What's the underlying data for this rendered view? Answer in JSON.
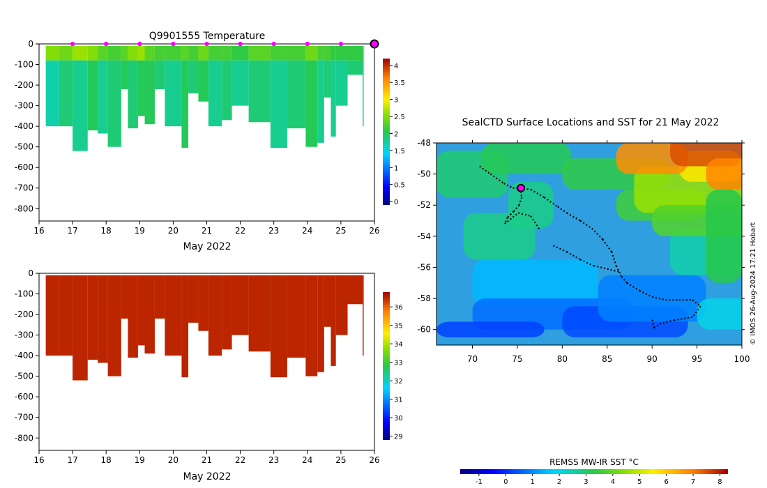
{
  "chart_data": [
    {
      "type": "heatmap",
      "title": "Q9901555  Temperature",
      "xlabel": "May 2022",
      "x_ticks": [
        "16",
        "17",
        "18",
        "19",
        "20",
        "21",
        "22",
        "23",
        "24",
        "25",
        "26"
      ],
      "xlim": [
        16,
        26
      ],
      "y_ticks": [
        "0",
        "-100",
        "-200",
        "-300",
        "-400",
        "-500",
        "-600",
        "-700",
        "-800"
      ],
      "ylim": [
        -860,
        0
      ],
      "colorbar": {
        "ticks": [
          "0",
          "0.5",
          "1",
          "1.5",
          "2",
          "2.5",
          "3",
          "3.5",
          "4"
        ],
        "range": [
          -0.1,
          4.2
        ]
      },
      "profiles": [
        {
          "start": 16.2,
          "end": 16.6,
          "depth": 400,
          "temp": 1.7,
          "upper": 2.5
        },
        {
          "start": 16.6,
          "end": 17.0,
          "depth": 400,
          "temp": 1.9,
          "upper": 2.4
        },
        {
          "start": 17.0,
          "end": 17.45,
          "depth": 520,
          "temp": 1.8,
          "upper": 2.6
        },
        {
          "start": 17.45,
          "end": 17.75,
          "depth": 420,
          "temp": 2.0,
          "upper": 2.5
        },
        {
          "start": 17.75,
          "end": 18.05,
          "depth": 435,
          "temp": 1.8,
          "upper": 2.3
        },
        {
          "start": 18.05,
          "end": 18.45,
          "depth": 500,
          "temp": 1.9,
          "upper": 2.2
        },
        {
          "start": 18.45,
          "end": 18.65,
          "depth": 220,
          "temp": 2.0,
          "upper": 2.3
        },
        {
          "start": 18.65,
          "end": 18.95,
          "depth": 410,
          "temp": 1.9,
          "upper": 2.5
        },
        {
          "start": 18.95,
          "end": 19.15,
          "depth": 350,
          "temp": 2.0,
          "upper": 2.6
        },
        {
          "start": 19.15,
          "end": 19.45,
          "depth": 390,
          "temp": 2.0,
          "upper": 2.3
        },
        {
          "start": 19.45,
          "end": 19.75,
          "depth": 220,
          "temp": 1.9,
          "upper": 2.2
        },
        {
          "start": 19.75,
          "end": 20.25,
          "depth": 400,
          "temp": 1.8,
          "upper": 2.2
        },
        {
          "start": 20.25,
          "end": 20.45,
          "depth": 505,
          "temp": 2.0,
          "upper": 2.3
        },
        {
          "start": 20.45,
          "end": 20.75,
          "depth": 240,
          "temp": 1.9,
          "upper": 2.2
        },
        {
          "start": 20.75,
          "end": 21.05,
          "depth": 280,
          "temp": 2.0,
          "upper": 2.4
        },
        {
          "start": 21.05,
          "end": 21.45,
          "depth": 400,
          "temp": 1.8,
          "upper": 2.2
        },
        {
          "start": 21.45,
          "end": 21.75,
          "depth": 370,
          "temp": 1.9,
          "upper": 2.2
        },
        {
          "start": 21.75,
          "end": 22.25,
          "depth": 300,
          "temp": 1.8,
          "upper": 2.1
        },
        {
          "start": 22.25,
          "end": 22.9,
          "depth": 380,
          "temp": 1.9,
          "upper": 2.3
        },
        {
          "start": 22.9,
          "end": 23.4,
          "depth": 505,
          "temp": 1.8,
          "upper": 2.2
        },
        {
          "start": 23.4,
          "end": 23.95,
          "depth": 410,
          "temp": 1.9,
          "upper": 2.2
        },
        {
          "start": 23.95,
          "end": 24.3,
          "depth": 500,
          "temp": 2.0,
          "upper": 2.4
        },
        {
          "start": 24.3,
          "end": 24.5,
          "depth": 480,
          "temp": 1.8,
          "upper": 2.2
        },
        {
          "start": 24.5,
          "end": 24.7,
          "depth": 260,
          "temp": 1.9,
          "upper": 2.2
        },
        {
          "start": 24.7,
          "end": 24.85,
          "depth": 450,
          "temp": 1.8,
          "upper": 2.1
        },
        {
          "start": 24.85,
          "end": 25.2,
          "depth": 300,
          "temp": 1.8,
          "upper": 2.1
        },
        {
          "start": 25.2,
          "end": 25.65,
          "depth": 150,
          "temp": 1.9,
          "upper": 2.1
        },
        {
          "start": 25.65,
          "end": 25.68,
          "depth": 400,
          "temp": 1.9,
          "upper": 2.0
        }
      ],
      "profile_times": [
        17,
        18,
        19,
        20,
        21,
        22,
        23,
        24,
        25
      ],
      "current_time": 26
    },
    {
      "type": "heatmap",
      "xlabel": "May 2022",
      "x_ticks": [
        "16",
        "17",
        "18",
        "19",
        "20",
        "21",
        "22",
        "23",
        "24",
        "25",
        "26"
      ],
      "xlim": [
        16,
        26
      ],
      "y_ticks": [
        "0",
        "-100",
        "-200",
        "-300",
        "-400",
        "-500",
        "-600",
        "-700",
        "-800"
      ],
      "ylim": [
        -860,
        0
      ],
      "colorbar": {
        "ticks": [
          "29",
          "30",
          "31",
          "32",
          "33",
          "34",
          "35",
          "36"
        ],
        "range": [
          28.8,
          36.8
        ]
      },
      "fill_value": 36.5
    },
    {
      "type": "heatmap",
      "title": "SealCTD Surface Locations and SST for 21 May 2022",
      "x_ticks": [
        "70",
        "75",
        "80",
        "85",
        "90",
        "95",
        "100"
      ],
      "xlim": [
        66,
        100
      ],
      "y_ticks": [
        "-48",
        "-50",
        "-52",
        "-54",
        "-56",
        "-58",
        "-60"
      ],
      "ylim": [
        -61,
        -48
      ],
      "colorbar": {
        "label": "REMSS MW-IR SST °C",
        "ticks": [
          "-1",
          "0",
          "1",
          "2",
          "3",
          "4",
          "5",
          "6",
          "7",
          "8"
        ],
        "range": [
          -1.7,
          8.3
        ]
      },
      "credit": "© IMOS 26-Aug-2024 17:21 Hobart",
      "track": [
        [
          70.8,
          -49.5
        ],
        [
          72.0,
          -50.0
        ],
        [
          73.5,
          -50.6
        ],
        [
          74.5,
          -50.9
        ],
        [
          75.3,
          -50.9
        ],
        [
          76.5,
          -51.0
        ],
        [
          78.0,
          -51.5
        ],
        [
          79.5,
          -52.1
        ],
        [
          80.5,
          -52.5
        ],
        [
          82.0,
          -53.0
        ],
        [
          83.3,
          -53.5
        ],
        [
          84.5,
          -54.2
        ],
        [
          85.5,
          -55.0
        ],
        [
          86.0,
          -55.9
        ],
        [
          86.6,
          -56.6
        ],
        [
          87.2,
          -57.0
        ],
        [
          88.6,
          -57.5
        ],
        [
          90.0,
          -57.9
        ],
        [
          91.5,
          -58.1
        ],
        [
          93.0,
          -58.1
        ],
        [
          94.5,
          -58.1
        ],
        [
          95.4,
          -58.5
        ],
        [
          94.5,
          -59.2
        ],
        [
          92.5,
          -59.4
        ],
        [
          91.0,
          -59.6
        ],
        [
          90.2,
          -59.9
        ],
        [
          90.0,
          -59.3
        ]
      ],
      "track2": [
        [
          75.3,
          -50.9
        ],
        [
          75.5,
          -51.5
        ],
        [
          75.2,
          -52.0
        ],
        [
          74.6,
          -52.4
        ],
        [
          73.9,
          -52.8
        ],
        [
          73.6,
          -53.2
        ],
        [
          75.1,
          -52.5
        ],
        [
          76.5,
          -52.7
        ],
        [
          77.5,
          -53.6
        ]
      ],
      "track3": [
        [
          79.0,
          -54.6
        ],
        [
          80.5,
          -55.0
        ],
        [
          82.0,
          -55.5
        ],
        [
          83.5,
          -55.9
        ],
        [
          85.0,
          -56.1
        ],
        [
          86.5,
          -56.3
        ]
      ],
      "current_location": [
        75.4,
        -50.9
      ]
    }
  ]
}
